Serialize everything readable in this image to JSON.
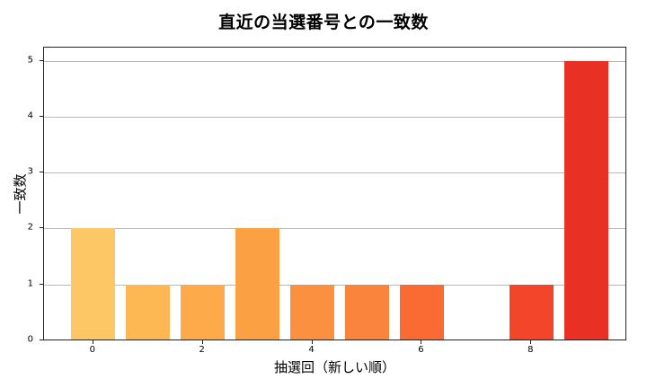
{
  "chart_data": {
    "type": "bar",
    "title": "直近の当選番号との一致数",
    "xlabel": "抽選回（新しい順）",
    "ylabel": "一致数",
    "categories": [
      0,
      1,
      2,
      3,
      4,
      5,
      6,
      7,
      8,
      9
    ],
    "values": [
      2,
      1,
      1,
      2,
      1,
      1,
      1,
      0,
      1,
      5
    ],
    "colors": [
      "#fdc765",
      "#fdb854",
      "#fcaa4a",
      "#fca044",
      "#fb9040",
      "#fb843c",
      "#fa6b33",
      "#f7522c",
      "#f24529",
      "#e93024"
    ],
    "xticks": [
      0,
      2,
      4,
      6,
      8
    ],
    "yticks": [
      0,
      1,
      2,
      3,
      4,
      5
    ],
    "ylim": [
      0,
      5.25
    ],
    "xlim": [
      -0.9,
      9.75
    ],
    "grid": "y",
    "legend": null
  }
}
